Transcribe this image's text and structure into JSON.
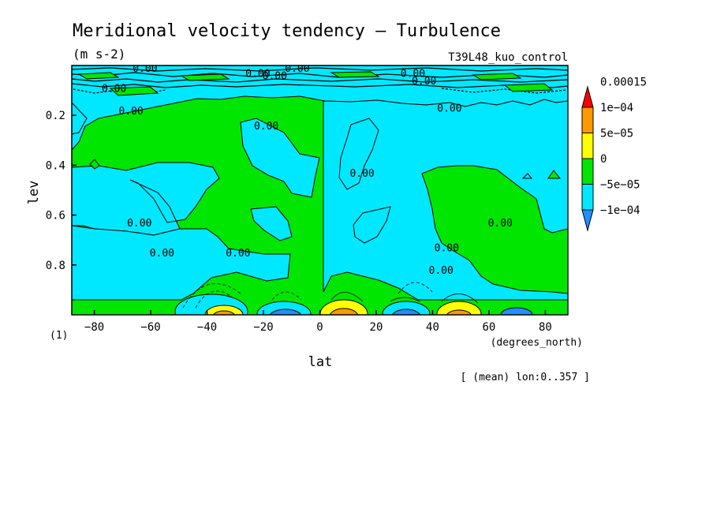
{
  "chart_data": {
    "type": "heatmap",
    "title": "Meridional velocity tendency — Turbulence",
    "units": "(m s-2)",
    "run_label": "T39L48_kuo_control",
    "xlabel": "lat",
    "x_units": "(degrees_north)",
    "ylabel": "lev",
    "y_units": "(1)",
    "footnote": "[ (mean) lon:0..357 ]",
    "xlim": [
      -88,
      88
    ],
    "ylim": [
      0,
      1
    ],
    "y_inverted": true,
    "x_ticks": [
      -80,
      -60,
      -40,
      -20,
      0,
      20,
      40,
      60,
      80
    ],
    "x_tick_labels": [
      "−80",
      "−60",
      "−40",
      "−20",
      "0",
      "20",
      "40",
      "60",
      "80"
    ],
    "y_ticks": [
      0.2,
      0.4,
      0.6,
      0.8
    ],
    "y_tick_labels": [
      "0.2",
      "0.4",
      "0.6",
      "0.8"
    ],
    "grid": false,
    "legend_placement": "right",
    "colorbar": {
      "levels": [
        -0.0001,
        -5e-05,
        0,
        5e-05,
        0.0001,
        0.00015
      ],
      "labels": [
        "−1e−04",
        "−5e−05",
        "0",
        "5e−05",
        "1e−04",
        "0.00015"
      ],
      "colors": [
        "#1e90ff",
        "#00e8ff",
        "#00e600",
        "#ffff00",
        "#ff9900",
        "#ff0000"
      ]
    },
    "contour_labels": [
      {
        "text": "0.00",
        "lat": -62,
        "lev": 0.01
      },
      {
        "text": "0.00",
        "lat": -8,
        "lev": 0.01
      },
      {
        "text": "0.00",
        "lat": -22,
        "lev": 0.03
      },
      {
        "text": "0.00",
        "lat": -16,
        "lev": 0.04
      },
      {
        "text": "0.00",
        "lat": 33,
        "lev": 0.03
      },
      {
        "text": "0.00",
        "lat": 37,
        "lev": 0.06
      },
      {
        "text": "0.00",
        "lat": -73,
        "lev": 0.09
      },
      {
        "text": "0.00",
        "lat": -67,
        "lev": 0.18
      },
      {
        "text": "0.00",
        "lat": 46,
        "lev": 0.17
      },
      {
        "text": "0.00",
        "lat": -19,
        "lev": 0.24
      },
      {
        "text": "0.00",
        "lat": 15,
        "lev": 0.43
      },
      {
        "text": "0.00",
        "lat": -64,
        "lev": 0.63
      },
      {
        "text": "0.00",
        "lat": 64,
        "lev": 0.63
      },
      {
        "text": "0.00",
        "lat": -56,
        "lev": 0.75
      },
      {
        "text": "0.00",
        "lat": -29,
        "lev": 0.75
      },
      {
        "text": "0.00",
        "lat": 45,
        "lev": 0.73
      },
      {
        "text": "0.00",
        "lat": 43,
        "lev": 0.82
      }
    ],
    "features": [
      {
        "region": "surface extrema",
        "lat": -32,
        "lev": 1.0,
        "value": 0.00015
      },
      {
        "region": "surface extrema",
        "lat": -12,
        "lev": 1.0,
        "value": -0.0001
      },
      {
        "region": "surface extrema",
        "lat": 8,
        "lev": 1.0,
        "value": 0.0001
      },
      {
        "region": "surface extrema",
        "lat": 28,
        "lev": 1.0,
        "value": -0.0001
      },
      {
        "region": "surface extrema",
        "lat": 52,
        "lev": 1.0,
        "value": 0.0001
      }
    ]
  }
}
